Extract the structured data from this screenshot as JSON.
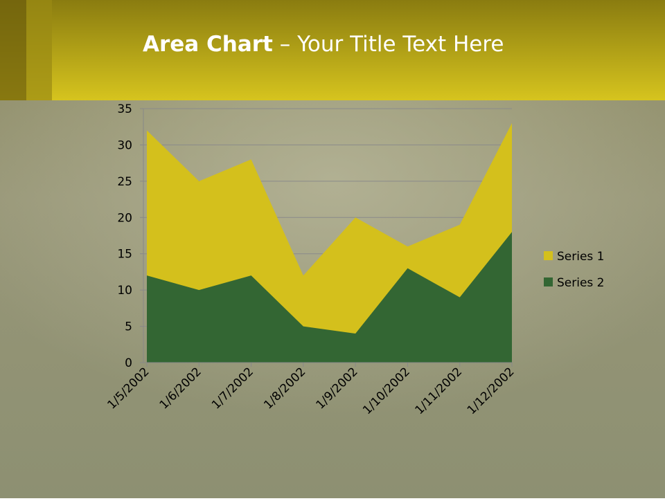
{
  "slide": {
    "title_bold": "Area Chart",
    "title_rest": "– Your Title Text Here"
  },
  "chart_data": {
    "type": "area",
    "categories": [
      "1/5/2002",
      "1/6/2002",
      "1/7/2002",
      "1/8/2002",
      "1/9/2002",
      "1/10/2002",
      "1/11/2002",
      "1/12/2002"
    ],
    "series": [
      {
        "name": "Series 1",
        "color": "#d4c01c",
        "values": [
          32,
          25,
          28,
          12,
          20,
          16,
          19,
          33
        ]
      },
      {
        "name": "Series 2",
        "color": "#336633",
        "values": [
          12,
          10,
          12,
          5,
          4,
          13,
          9,
          18
        ]
      }
    ],
    "ylim": [
      0,
      35
    ],
    "yticks": [
      0,
      5,
      10,
      15,
      20,
      25,
      30,
      35
    ],
    "grid": true,
    "legend": "right"
  }
}
